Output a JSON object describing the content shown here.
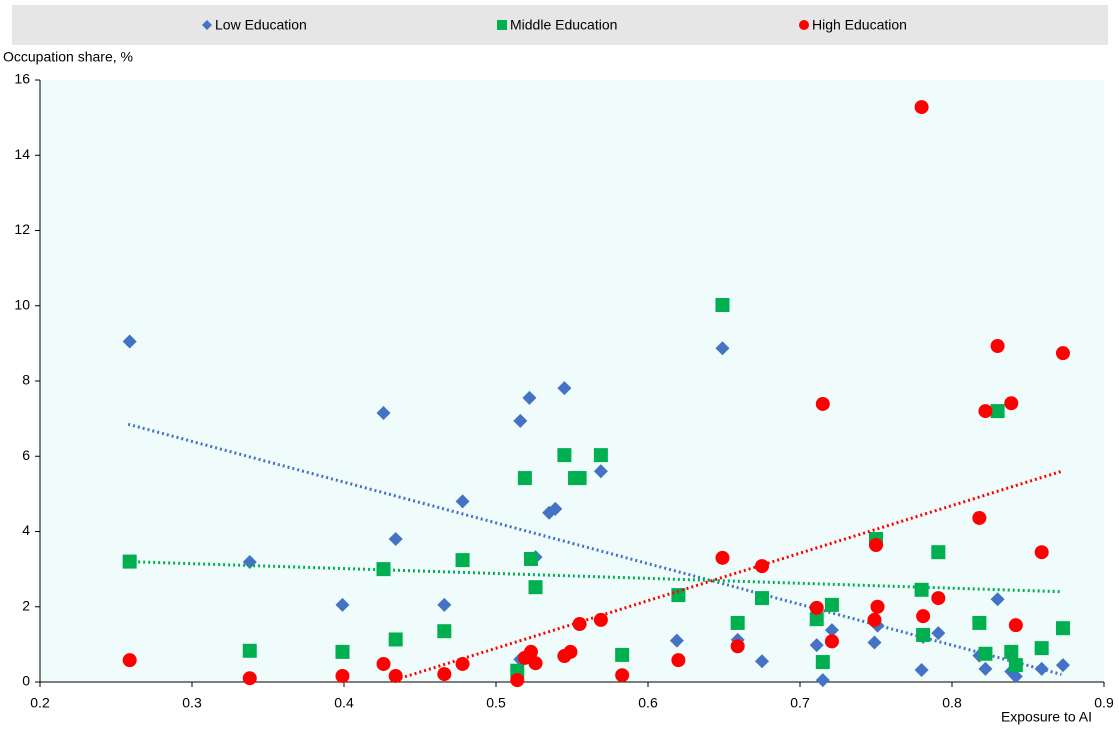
{
  "chart_data": {
    "type": "scatter",
    "y_label": "Occupation share, %",
    "x_label": "Exposure to AI",
    "xlim": [
      0.2,
      0.9
    ],
    "xticks": [
      0.2,
      0.3,
      0.4,
      0.5,
      0.6,
      0.7,
      0.8,
      0.9
    ],
    "ylim": [
      0,
      16
    ],
    "yticks": [
      0,
      2,
      4,
      6,
      8,
      10,
      12,
      14,
      16
    ],
    "grid": false,
    "legend": "top",
    "series": [
      {
        "name": "Low Education",
        "color": "#4472c4",
        "marker": "diamond",
        "x": [
          0.259,
          0.338,
          0.399,
          0.426,
          0.434,
          0.466,
          0.478,
          0.516,
          0.522,
          0.526,
          0.516,
          0.545,
          0.535,
          0.539,
          0.569,
          0.619,
          0.649,
          0.659,
          0.675,
          0.711,
          0.715,
          0.721,
          0.749,
          0.751,
          0.78,
          0.781,
          0.791,
          0.818,
          0.822,
          0.83,
          0.839,
          0.842,
          0.859,
          0.873
        ],
        "values": [
          9.05,
          3.19,
          2.05,
          7.15,
          3.8,
          2.05,
          4.8,
          6.94,
          7.55,
          3.32,
          0.6,
          7.81,
          4.5,
          4.6,
          5.6,
          1.1,
          8.87,
          1.12,
          0.55,
          0.98,
          0.05,
          1.38,
          1.05,
          1.5,
          0.32,
          1.2,
          1.3,
          0.7,
          0.35,
          2.2,
          0.28,
          0.15,
          0.35,
          0.45
        ],
        "trendline": {
          "x": [
            0.258,
            0.872
          ],
          "values": [
            6.85,
            0.2
          ]
        }
      },
      {
        "name": "Middle Education",
        "color": "#00b050",
        "marker": "square",
        "x": [
          0.259,
          0.338,
          0.399,
          0.426,
          0.434,
          0.466,
          0.478,
          0.514,
          0.519,
          0.523,
          0.526,
          0.545,
          0.552,
          0.555,
          0.569,
          0.583,
          0.62,
          0.649,
          0.659,
          0.675,
          0.711,
          0.715,
          0.721,
          0.75,
          0.78,
          0.781,
          0.791,
          0.818,
          0.822,
          0.83,
          0.839,
          0.842,
          0.859,
          0.873
        ],
        "values": [
          3.2,
          0.83,
          0.8,
          3.0,
          1.13,
          1.35,
          3.24,
          0.3,
          5.42,
          3.27,
          2.52,
          6.03,
          5.42,
          5.42,
          6.03,
          0.72,
          2.31,
          10.02,
          1.57,
          2.23,
          1.67,
          0.53,
          2.05,
          3.8,
          2.45,
          1.25,
          3.45,
          1.57,
          0.75,
          7.2,
          0.8,
          0.45,
          0.9,
          1.43
        ],
        "trendline": {
          "x": [
            0.258,
            0.872
          ],
          "values": [
            3.2,
            2.4
          ]
        }
      },
      {
        "name": "High Education",
        "color": "#ff0000",
        "marker": "circle",
        "x": [
          0.259,
          0.338,
          0.399,
          0.426,
          0.434,
          0.466,
          0.478,
          0.514,
          0.519,
          0.523,
          0.526,
          0.545,
          0.549,
          0.555,
          0.569,
          0.583,
          0.62,
          0.649,
          0.659,
          0.675,
          0.711,
          0.715,
          0.721,
          0.75,
          0.751,
          0.749,
          0.78,
          0.781,
          0.791,
          0.818,
          0.822,
          0.83,
          0.839,
          0.842,
          0.859,
          0.873
        ],
        "values": [
          0.58,
          0.1,
          0.16,
          0.48,
          0.16,
          0.21,
          0.48,
          0.05,
          0.64,
          0.8,
          0.5,
          0.69,
          0.8,
          1.54,
          1.65,
          0.18,
          0.58,
          3.3,
          0.95,
          3.08,
          1.97,
          7.39,
          1.08,
          3.64,
          2.0,
          1.65,
          15.28,
          1.75,
          2.23,
          4.36,
          7.2,
          8.93,
          7.41,
          1.51,
          3.45,
          8.74
        ],
        "trendline": {
          "x": [
            0.437,
            0.872
          ],
          "values": [
            0.1,
            5.6
          ]
        }
      }
    ]
  }
}
